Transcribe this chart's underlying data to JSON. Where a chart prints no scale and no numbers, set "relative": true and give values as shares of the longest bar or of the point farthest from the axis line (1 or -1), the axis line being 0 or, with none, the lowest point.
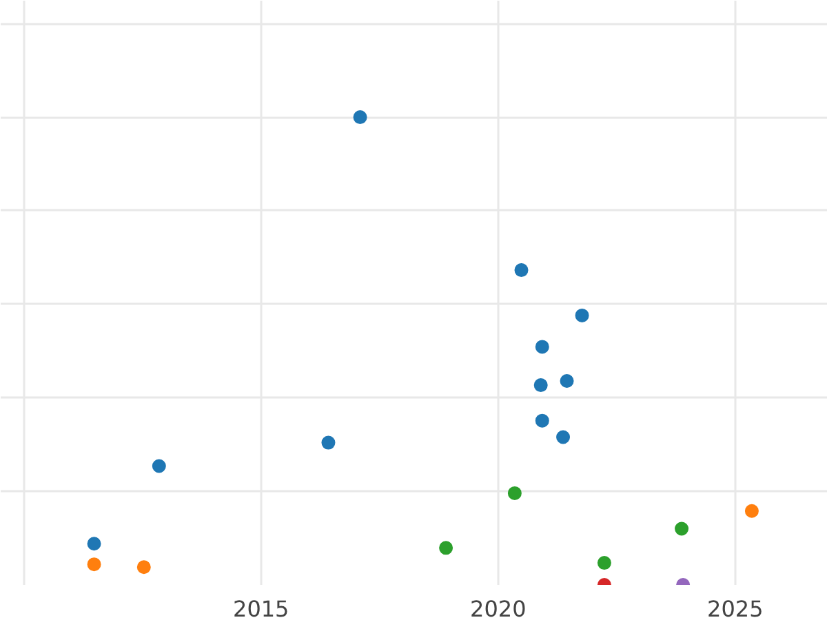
{
  "chart_data": {
    "type": "scatter",
    "relative": true,
    "marker": "circle",
    "grid": true,
    "tick_labels": "x",
    "xlim": [
      2009.51,
      2026.95
    ],
    "xticks": [
      {
        "value": 2010,
        "label": null
      },
      2015,
      2020,
      2025
    ],
    "series": [
      {
        "color": "#1f77b4",
        "x": [
          2017.09,
          2020.49,
          2021.77,
          2020.93,
          2020.9,
          2021.45,
          2020.93,
          2021.37,
          2016.42,
          2012.85,
          2011.48
        ],
        "values": [
          1.0,
          0.673,
          0.576,
          0.509,
          0.427,
          0.436,
          0.351,
          0.316,
          0.304,
          0.254,
          0.088
        ]
      },
      {
        "color": "#ff7f0e",
        "x": [
          2011.48,
          2012.53,
          2025.35
        ],
        "values": [
          0.044,
          0.038,
          0.158
        ]
      },
      {
        "color": "#2ca02c",
        "x": [
          2020.35,
          2018.9,
          2023.87,
          2022.24
        ],
        "values": [
          0.196,
          0.079,
          0.12,
          0.047
        ]
      },
      {
        "color": "#d62728",
        "x": [
          2022.24
        ],
        "values": [
          0.0
        ]
      },
      {
        "color": "#9467bd",
        "x": [
          2023.9
        ],
        "values": [
          0.0
        ]
      }
    ]
  }
}
